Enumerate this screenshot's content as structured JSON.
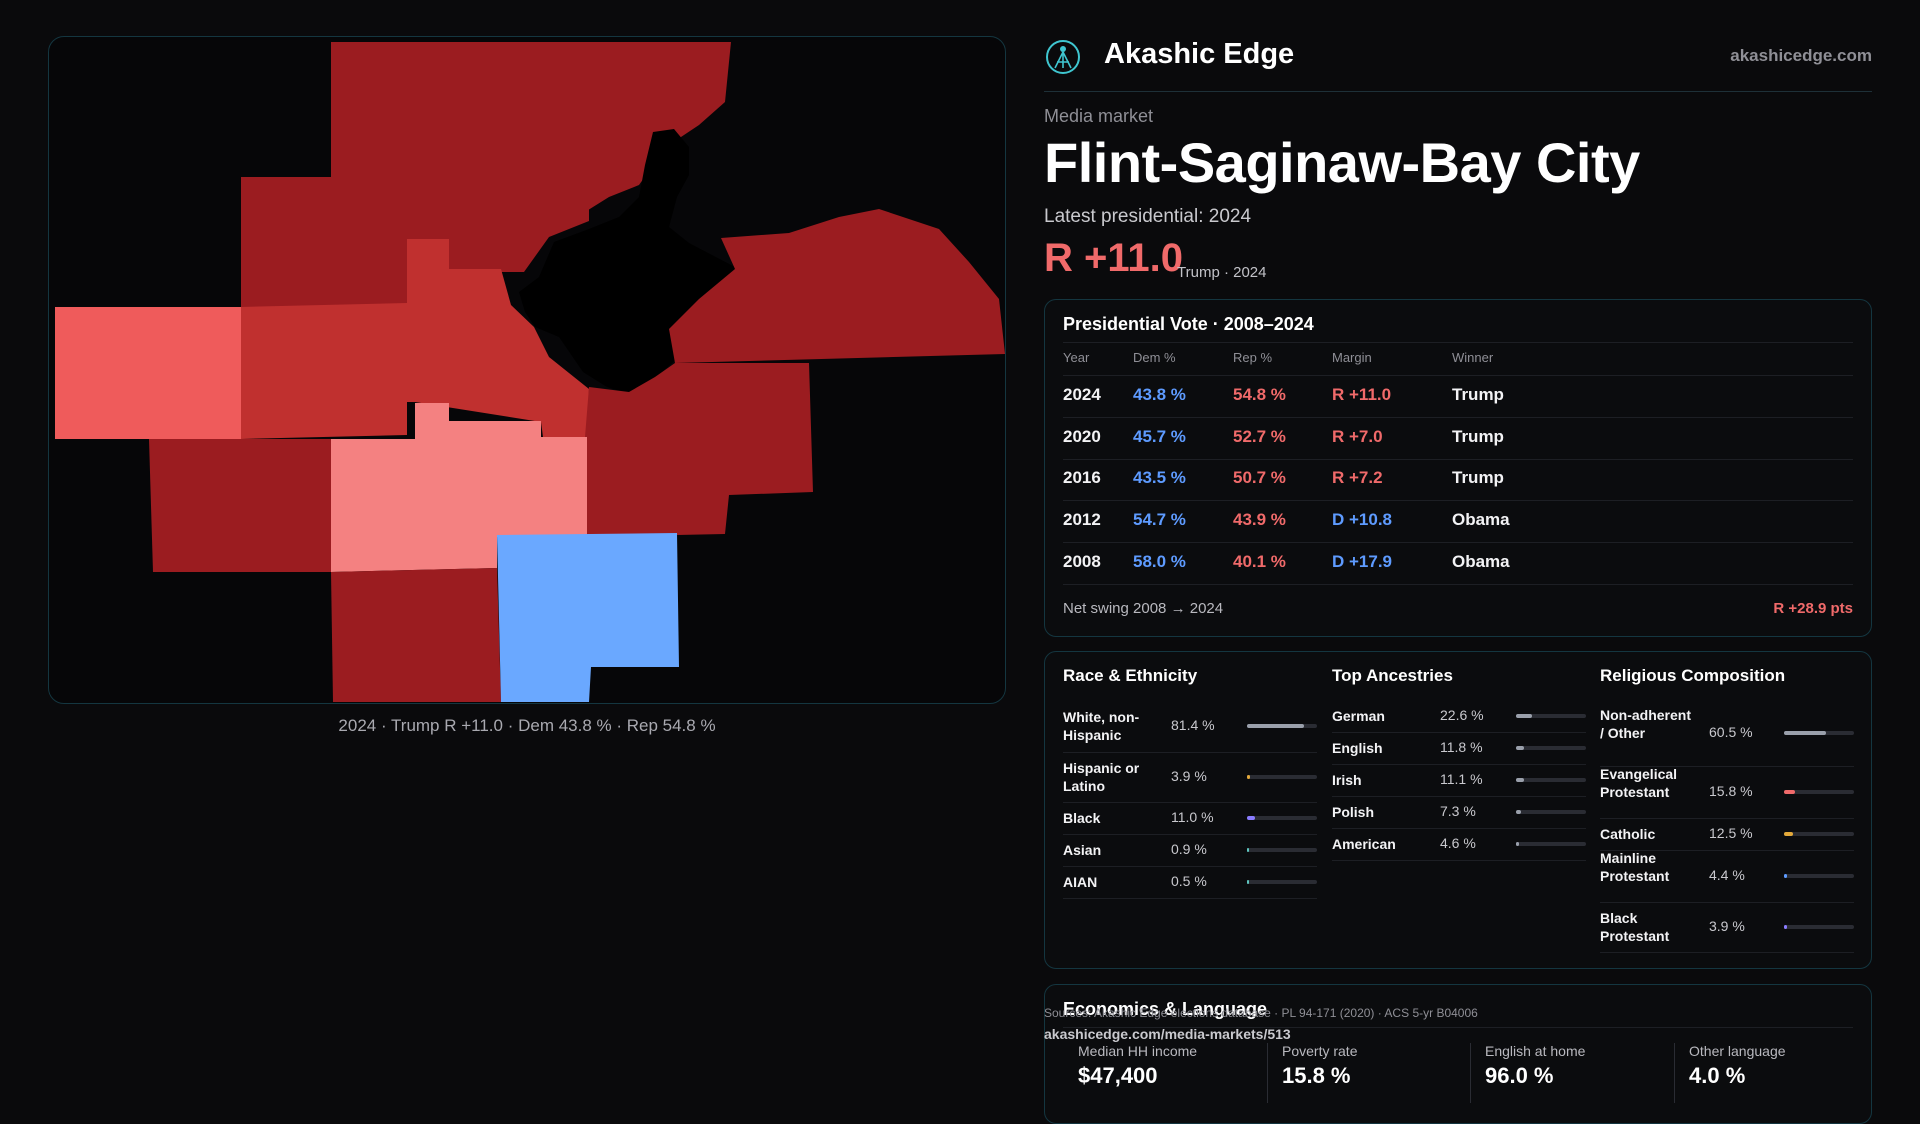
{
  "brand": {
    "name": "Akashic Edge",
    "url": "akashicedge.com"
  },
  "header": {
    "kicker": "Media market",
    "title": "Flint-Saginaw-Bay City",
    "latest_label": "Latest presidential: 2024",
    "headline_margin": "R +11.0",
    "headline_sub": "Trump · 2024"
  },
  "map": {
    "caption": "2024 · Trump R +11.0 · Dem 43.8 % · Rep 54.8 %",
    "legend_colors": {
      "dark_red": "#9b1c20",
      "mid_red": "#c0302f",
      "light_red": "#ef5b5b",
      "pale_red": "#f48181",
      "blue": "#6aa8ff",
      "water": "#000000"
    }
  },
  "vote_table": {
    "title": "Presidential Vote · 2008–2024",
    "columns": [
      "Year",
      "Dem %",
      "Rep %",
      "Margin",
      "Winner"
    ],
    "rows": [
      {
        "year": "2024",
        "dem": "43.8 %",
        "rep": "54.8 %",
        "margin": "R +11.0",
        "party": "R",
        "winner": "Trump"
      },
      {
        "year": "2020",
        "dem": "45.7 %",
        "rep": "52.7 %",
        "margin": "R +7.0",
        "party": "R",
        "winner": "Trump"
      },
      {
        "year": "2016",
        "dem": "43.5 %",
        "rep": "50.7 %",
        "margin": "R +7.2",
        "party": "R",
        "winner": "Trump"
      },
      {
        "year": "2012",
        "dem": "54.7 %",
        "rep": "43.9 %",
        "margin": "D +10.8",
        "party": "D",
        "winner": "Obama"
      },
      {
        "year": "2008",
        "dem": "58.0 %",
        "rep": "40.1 %",
        "margin": "D +17.9",
        "party": "D",
        "winner": "Obama"
      }
    ],
    "swing_label": "Net swing 2008 → 2024",
    "swing_value": "R +28.9 pts"
  },
  "race": {
    "title": "Race & Ethnicity",
    "rows": [
      {
        "label": "White, non-Hispanic",
        "value": "81.4 %",
        "pct": 81.4,
        "color": "#9aa0ab"
      },
      {
        "label": "Hispanic or Latino",
        "value": "3.9 %",
        "pct": 3.9,
        "color": "#e3a93a"
      },
      {
        "label": "Black",
        "value": "11.0 %",
        "pct": 11.0,
        "color": "#8a7cff"
      },
      {
        "label": "Asian",
        "value": "0.9 %",
        "pct": 0.9,
        "color": "#5ec6c0"
      },
      {
        "label": "AIAN",
        "value": "0.5 %",
        "pct": 0.5,
        "color": "#5ec6c0"
      }
    ]
  },
  "ancestry": {
    "title": "Top Ancestries",
    "rows": [
      {
        "label": "German",
        "value": "22.6 %",
        "pct": 22.6,
        "color": "#9aa0ab"
      },
      {
        "label": "English",
        "value": "11.8 %",
        "pct": 11.8,
        "color": "#9aa0ab"
      },
      {
        "label": "Irish",
        "value": "11.1 %",
        "pct": 11.1,
        "color": "#9aa0ab"
      },
      {
        "label": "Polish",
        "value": "7.3 %",
        "pct": 7.3,
        "color": "#9aa0ab"
      },
      {
        "label": "American",
        "value": "4.6 %",
        "pct": 4.6,
        "color": "#9aa0ab"
      }
    ]
  },
  "religion": {
    "title": "Religious Composition",
    "rows": [
      {
        "label": "Non-adherent / Other",
        "value": "60.5 %",
        "pct": 60.5,
        "color": "#9aa0ab"
      },
      {
        "label": "Evangelical Protestant",
        "value": "15.8 %",
        "pct": 15.8,
        "color": "#f06a6a"
      },
      {
        "label": "Catholic",
        "value": "12.5 %",
        "pct": 12.5,
        "color": "#e3a93a"
      },
      {
        "label": "Mainline Protestant",
        "value": "4.4 %",
        "pct": 4.4,
        "color": "#5e9bff"
      },
      {
        "label": "Black Protestant",
        "value": "3.9 %",
        "pct": 3.9,
        "color": "#8a7cff"
      }
    ]
  },
  "economics": {
    "title": "Economics & Language",
    "items": [
      {
        "label": "Median HH income",
        "value": "$47,400"
      },
      {
        "label": "Poverty rate",
        "value": "15.8 %"
      },
      {
        "label": "English at home",
        "value": "96.0 %"
      },
      {
        "label": "Other language",
        "value": "4.0 %"
      }
    ]
  },
  "footer": {
    "sources": "Sources: Akashic Edge elections database · PL 94-171 (2020) · ACS 5-yr B04006",
    "url": "akashicedge.com/media-markets/513"
  }
}
